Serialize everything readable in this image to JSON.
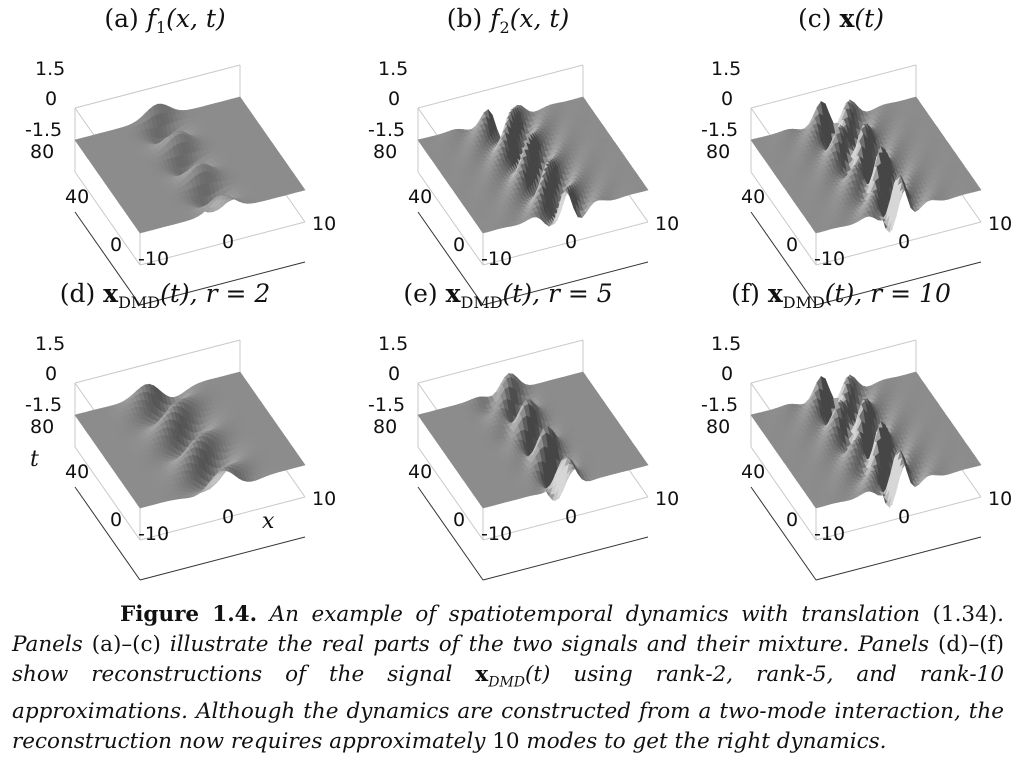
{
  "figure": {
    "panels": [
      {
        "label": "(a)",
        "sym": "f",
        "sub": "1",
        "args": "(x, t)",
        "bold": false,
        "extra": ""
      },
      {
        "label": "(b)",
        "sym": "f",
        "sub": "2",
        "args": "(x, t)",
        "bold": false,
        "extra": ""
      },
      {
        "label": "(c)",
        "sym": "x",
        "sub": "",
        "args": "(t)",
        "bold": true,
        "extra": ""
      },
      {
        "label": "(d)",
        "sym": "x",
        "sub": "DMD",
        "args": "(t),",
        "bold": true,
        "extra": "r = 2"
      },
      {
        "label": "(e)",
        "sym": "x",
        "sub": "DMD",
        "args": "(t),",
        "bold": true,
        "extra": "r = 5"
      },
      {
        "label": "(f)",
        "sym": "x",
        "sub": "DMD",
        "args": "(t),",
        "bold": true,
        "extra": "r = 10"
      }
    ],
    "ticks": {
      "z": [
        "1.5",
        "0",
        "-1.5"
      ],
      "t": [
        "80",
        "40",
        "0"
      ],
      "x": [
        "-10",
        "0",
        "10"
      ]
    },
    "axis_names": {
      "t": "t",
      "x": "x"
    }
  },
  "caption": {
    "label": "Figure 1.4.",
    "s1": "An example of spatiotemporal dynamics with translation",
    "eq": "(1.34)",
    "s2": ". Panels",
    "r1": "(a)–(c)",
    "s3": "illustrate the real parts of the two signals and their mixture. Panels",
    "r2": "(d)–(f)",
    "s4": "show reconstructions of the signal",
    "sig_sym": "x",
    "sig_sub": "DMD",
    "sig_arg": "(t)",
    "s5": "using rank-2, rank-5, and rank-10 approximations. Although the dynamics are constructed from a two-mode interaction, the reconstruction now requires approximately",
    "n": "10",
    "s6": "modes to get the right dynamics."
  }
}
